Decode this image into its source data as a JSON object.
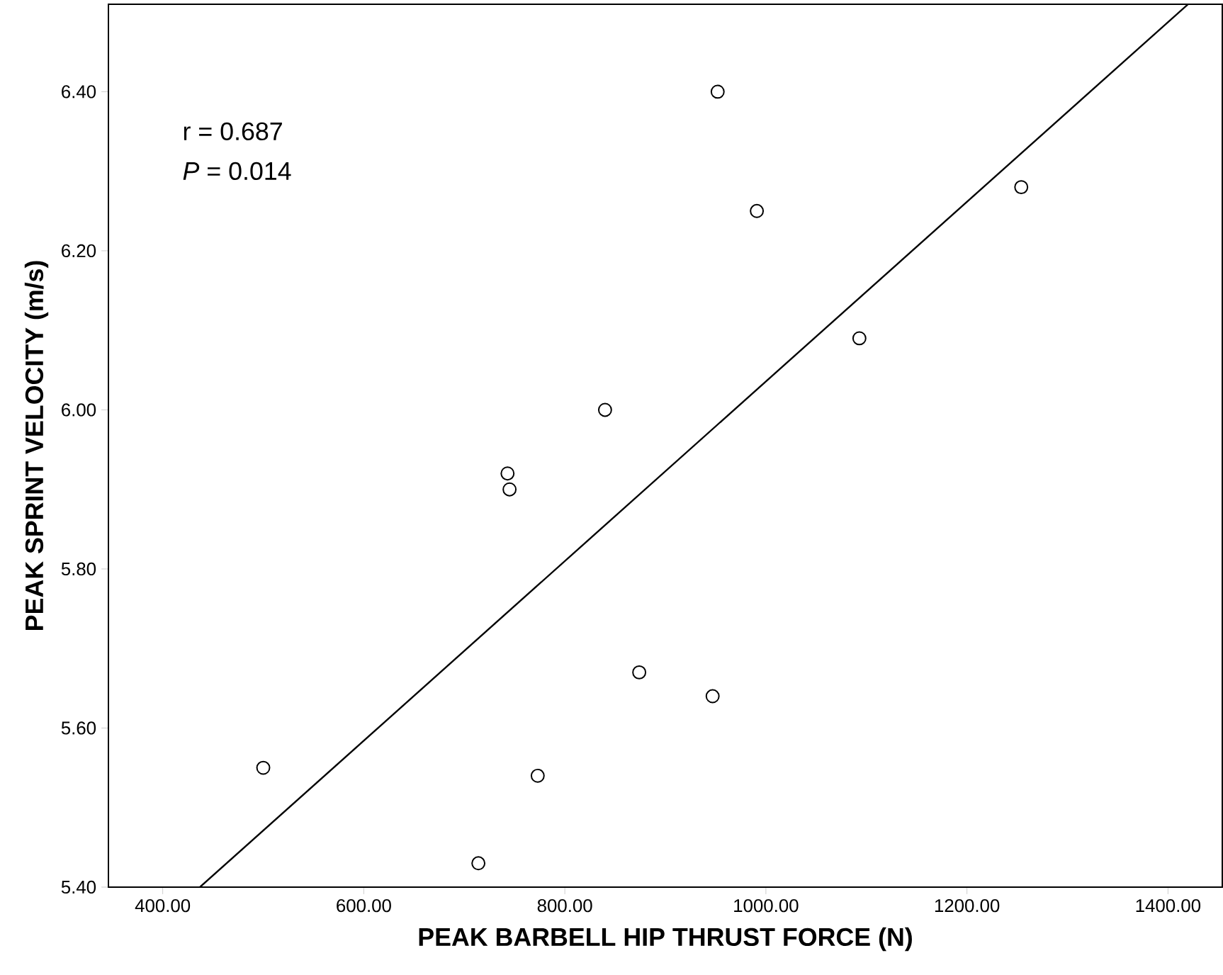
{
  "chart_data": {
    "type": "scatter",
    "xlabel": "PEAK BARBELL HIP THRUST FORCE (N)",
    "ylabel": "PEAK SPRINT VELOCITY (m/s)",
    "annotations": [
      "r = 0.687",
      "*P* = 0.014"
    ],
    "xlim": [
      346,
      1454
    ],
    "ylim": [
      5.4,
      6.51
    ],
    "xticks": [
      {
        "value": 400,
        "label": "400.00"
      },
      {
        "value": 600,
        "label": "600.00"
      },
      {
        "value": 800,
        "label": "800.00"
      },
      {
        "value": 1000,
        "label": "1000.00"
      },
      {
        "value": 1200,
        "label": "1200.00"
      },
      {
        "value": 1400,
        "label": "1400.00"
      }
    ],
    "yticks": [
      {
        "value": 5.4,
        "label": "5.40"
      },
      {
        "value": 5.6,
        "label": "5.60"
      },
      {
        "value": 5.8,
        "label": "5.80"
      },
      {
        "value": 6.0,
        "label": "6.00"
      },
      {
        "value": 6.2,
        "label": "6.20"
      },
      {
        "value": 6.4,
        "label": "6.40"
      }
    ],
    "grid": false,
    "series": [
      {
        "type": "scatter",
        "color": "#000000",
        "marker": "circle",
        "x": [
          952,
          991,
          1254,
          1093,
          840,
          743,
          745,
          874,
          947,
          500,
          773,
          714
        ],
        "values": [
          6.4,
          6.25,
          6.28,
          6.09,
          6.0,
          5.92,
          5.9,
          5.67,
          5.64,
          5.55,
          5.54,
          5.43
        ]
      },
      {
        "type": "line",
        "color": "#000000",
        "marker": "none",
        "line_style": "solid",
        "x": [
          437,
          1420
        ],
        "values": [
          5.4,
          6.51
        ]
      }
    ]
  }
}
